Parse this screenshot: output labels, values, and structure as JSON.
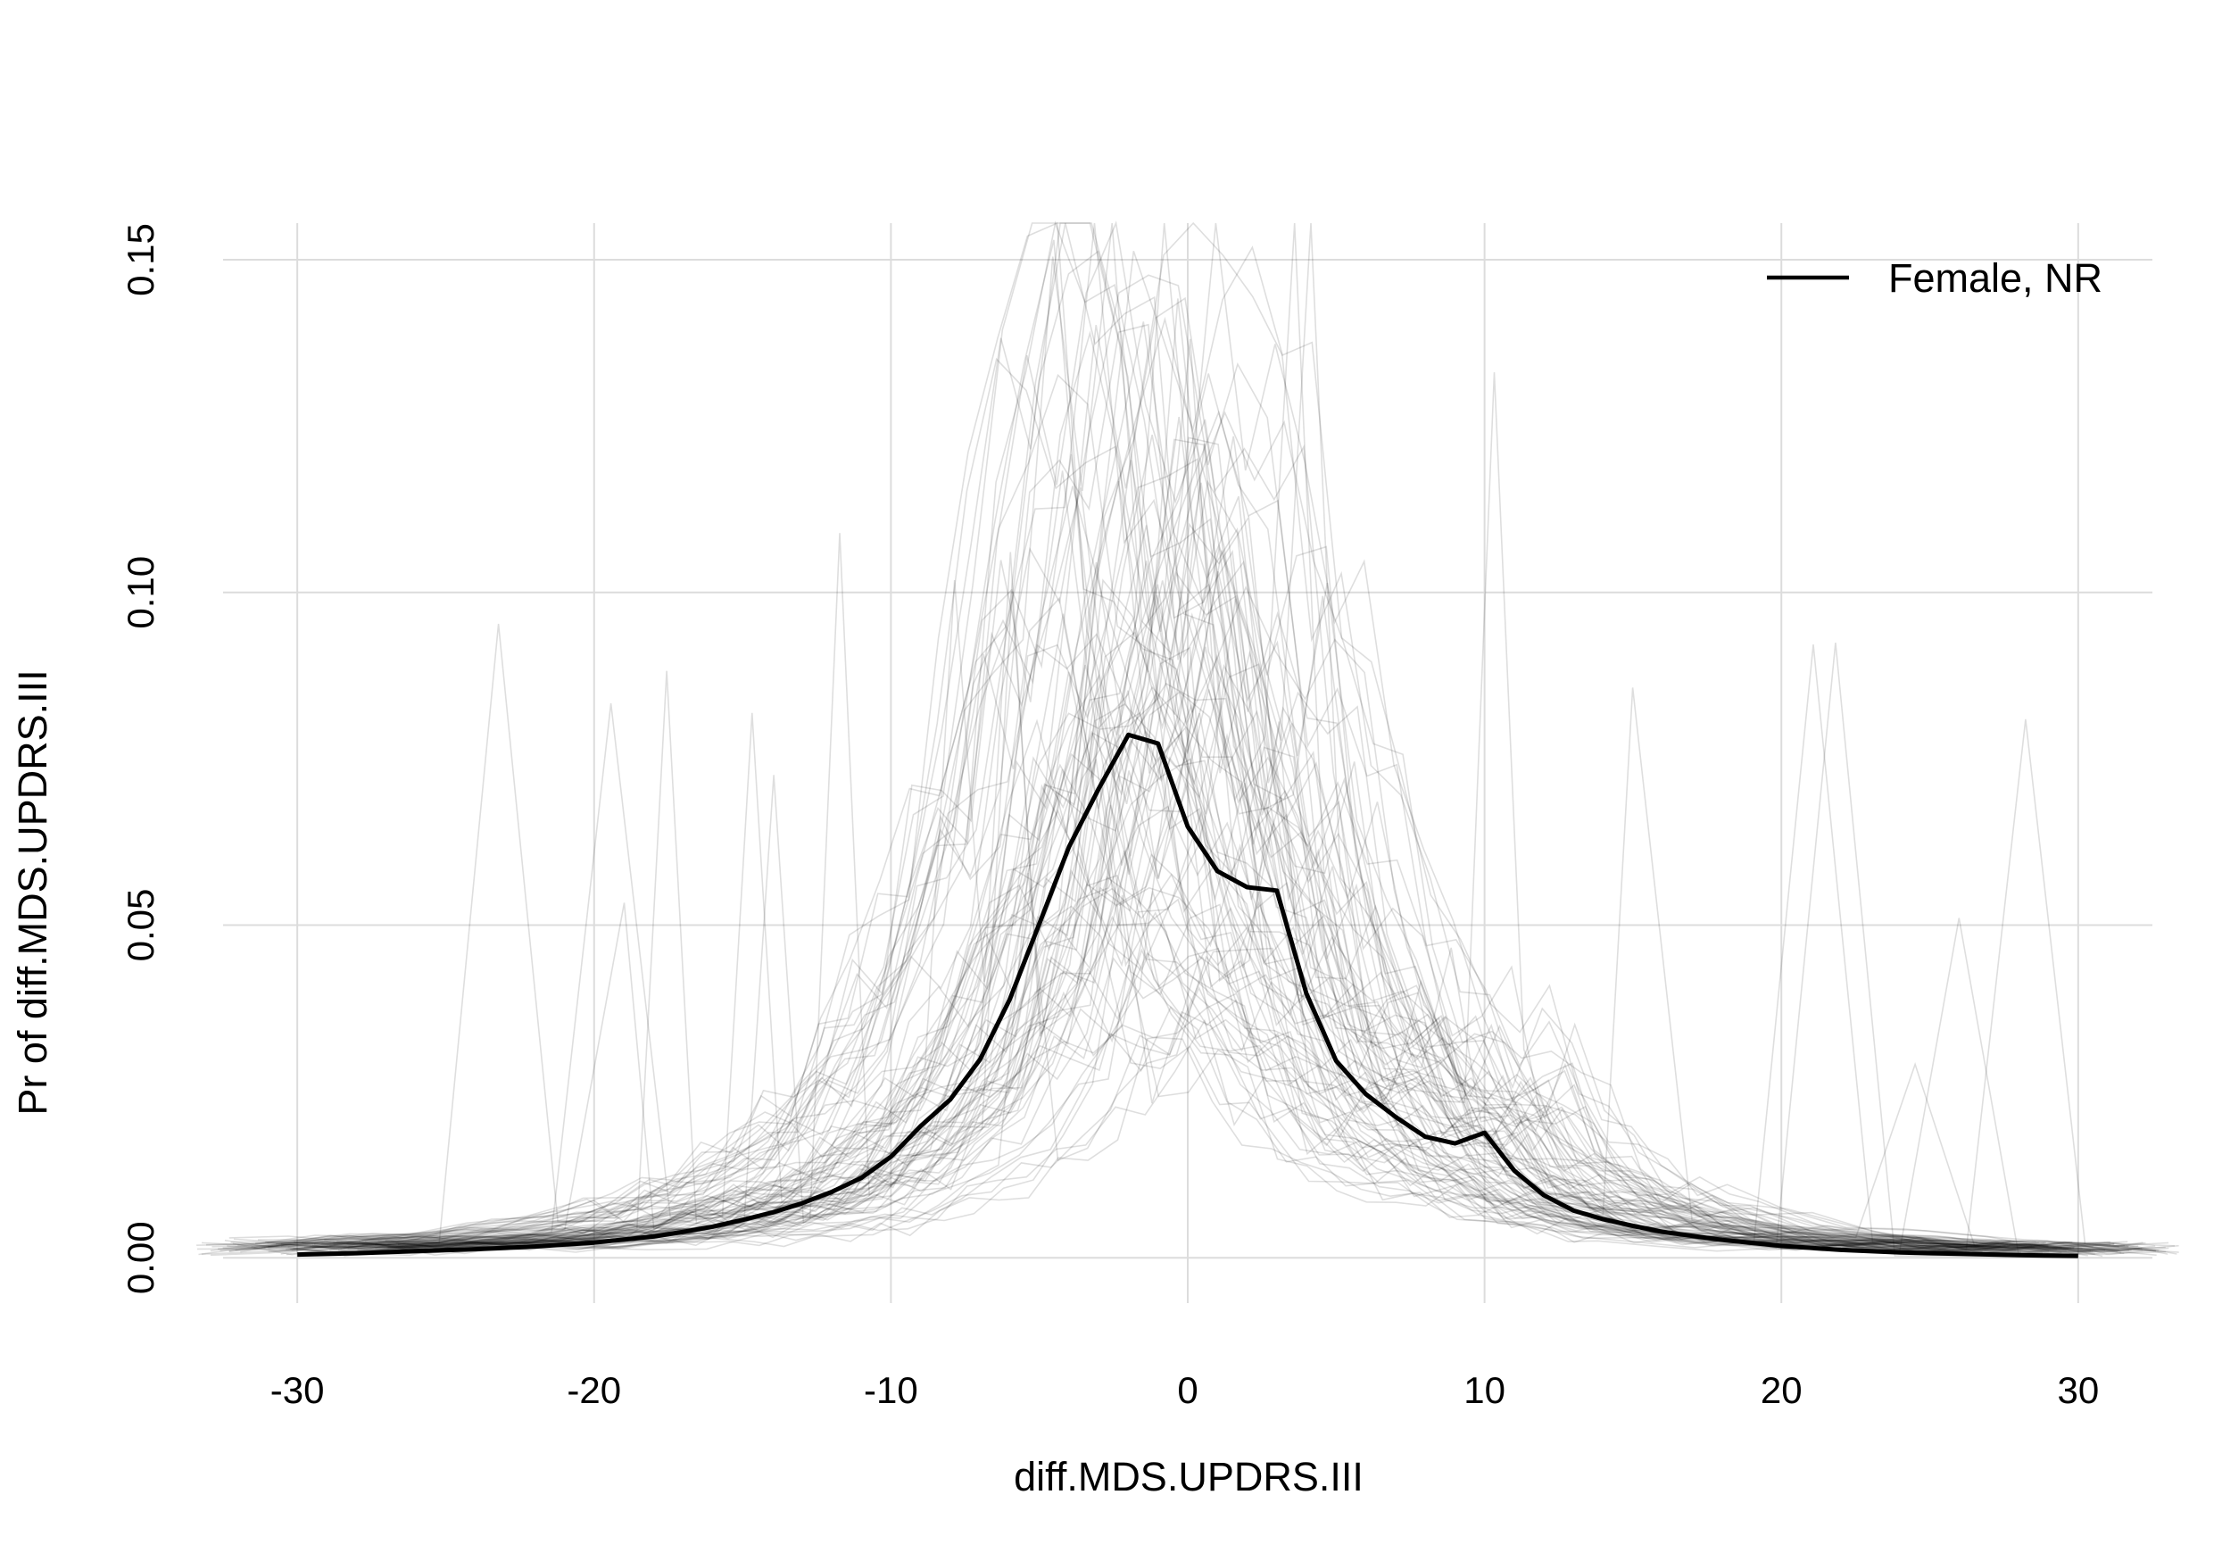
{
  "chart_data": {
    "type": "line",
    "title": "",
    "xlabel": "diff.MDS.UPDRS.III",
    "ylabel": "Pr of diff.MDS.UPDRS.III",
    "xlim": [
      -32.5,
      32.5
    ],
    "ylim": [
      -0.0068,
      0.1555
    ],
    "x_ticks": [
      -30,
      -20,
      -10,
      0,
      10,
      20,
      30
    ],
    "x_tick_labels": [
      "-30",
      "-20",
      "-10",
      "0",
      "10",
      "20",
      "30"
    ],
    "y_ticks": [
      0.0,
      0.05,
      0.1,
      0.15
    ],
    "y_tick_labels": [
      "0.00",
      "0.05",
      "0.10",
      "0.15"
    ],
    "grid": true,
    "legend": {
      "position": "top-right",
      "entries": [
        "Female, NR"
      ]
    },
    "series": [
      {
        "name": "Female, NR",
        "color": "#000000",
        "x": [
          -30,
          -28,
          -26,
          -24,
          -22,
          -20,
          -18,
          -17,
          -16,
          -15,
          -14,
          -13,
          -12,
          -11,
          -10,
          -9,
          -8,
          -7,
          -6,
          -5,
          -4,
          -3,
          -2,
          -1,
          0,
          1,
          2,
          3,
          4,
          5,
          6,
          7,
          8,
          9,
          10,
          11,
          12,
          13,
          14,
          15,
          16,
          18,
          20,
          22,
          24,
          26,
          28,
          30
        ],
        "y": [
          0.0005,
          0.0007,
          0.001,
          0.0013,
          0.0017,
          0.0023,
          0.0032,
          0.0039,
          0.0047,
          0.0057,
          0.0068,
          0.0082,
          0.0099,
          0.012,
          0.0152,
          0.0198,
          0.0238,
          0.0298,
          0.0388,
          0.0502,
          0.0618,
          0.0705,
          0.0786,
          0.0773,
          0.0648,
          0.0581,
          0.0557,
          0.0552,
          0.0397,
          0.0296,
          0.0246,
          0.0212,
          0.0182,
          0.0172,
          0.0188,
          0.0131,
          0.0094,
          0.0071,
          0.0058,
          0.0048,
          0.0039,
          0.0027,
          0.0018,
          0.0012,
          0.0008,
          0.0006,
          0.0004,
          0.0003
        ]
      }
    ]
  }
}
